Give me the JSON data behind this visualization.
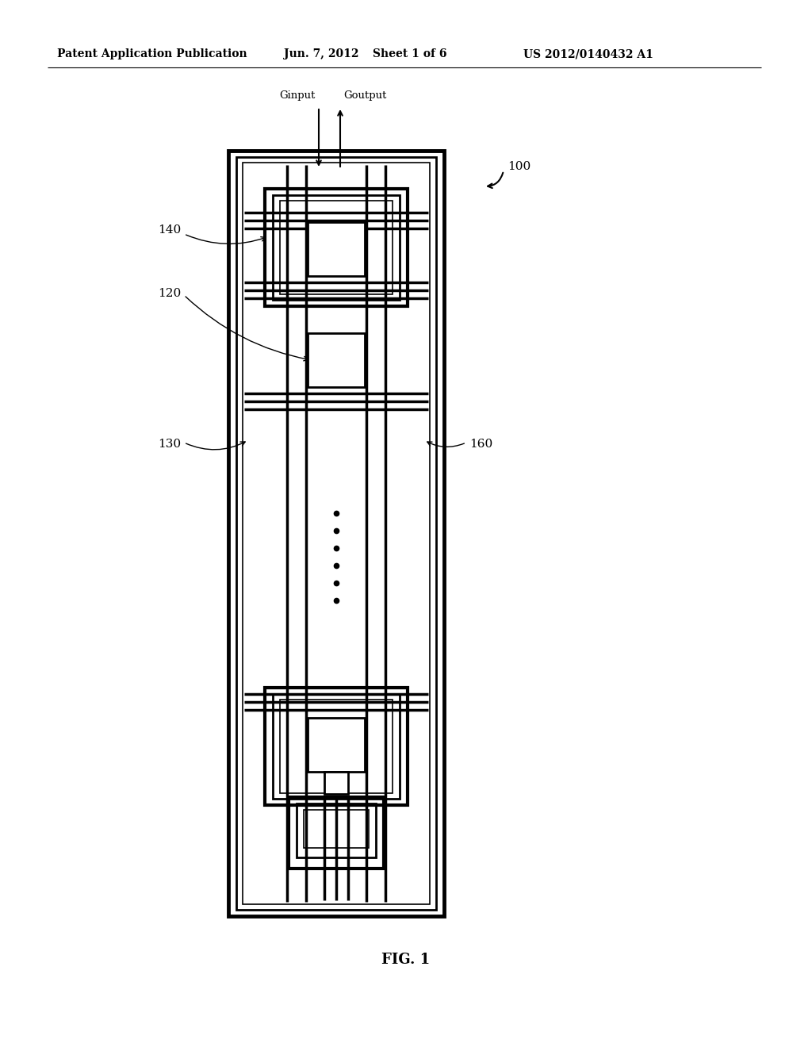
{
  "bg_color": "#ffffff",
  "line_color": "#000000",
  "header_text": "Patent Application Publication",
  "header_date": "Jun. 7, 2012",
  "header_sheet": "Sheet 1 of 6",
  "header_patent": "US 2012/0140432 A1",
  "fig_label": "FIG. 1",
  "ref_100": "100",
  "ref_140": "140",
  "ref_120": "120",
  "ref_130": "130",
  "ref_160": "160",
  "label_ginput": "Ginput",
  "label_goutput": "Goutput",
  "figsize": [
    10.24,
    13.2
  ],
  "dpi": 100
}
